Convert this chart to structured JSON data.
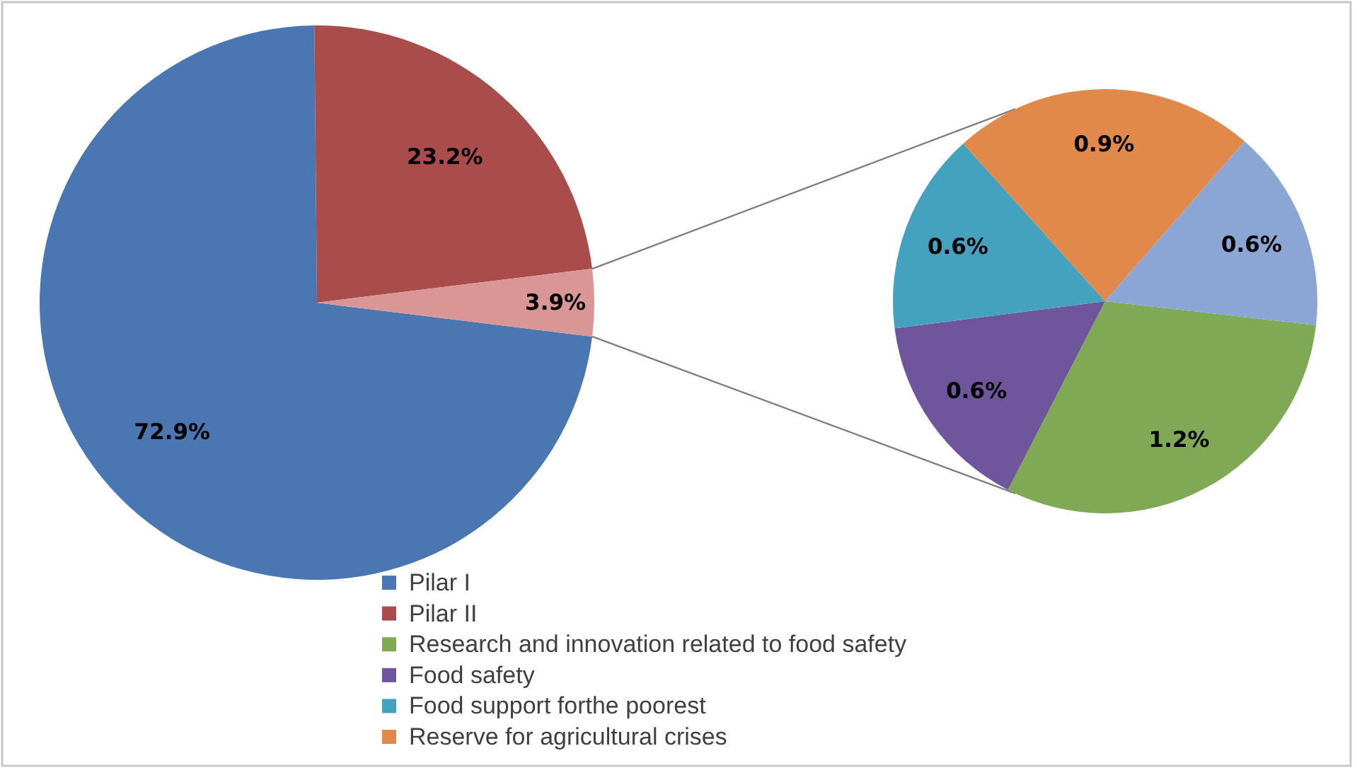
{
  "chart_data": [
    {
      "type": "pie",
      "categories": [
        "Pilar I",
        "Pilar II",
        null
      ],
      "values": [
        72.9,
        23.2,
        3.9
      ],
      "colors": [
        "#4a76b1",
        "#a94c4b",
        "#d99694"
      ],
      "value_labels": [
        "72.9%",
        "23.2%",
        "3.9%"
      ],
      "legend": "bottom"
    },
    {
      "type": "pie",
      "categories": [
        "Research and innovation related to food safety",
        "Food safety",
        "Food support forthe poorest",
        "Reserve for agricultural crises",
        null
      ],
      "values": [
        1.2,
        0.6,
        0.6,
        0.9,
        0.6
      ],
      "colors": [
        "#7fa955",
        "#6f569c",
        "#45a2bf",
        "#e0894a",
        "#8ba6d5"
      ],
      "value_labels": [
        "1.2%",
        "0.6%",
        "0.6%",
        "0.9%",
        "0.6%"
      ],
      "legend": "bottom left"
    }
  ]
}
